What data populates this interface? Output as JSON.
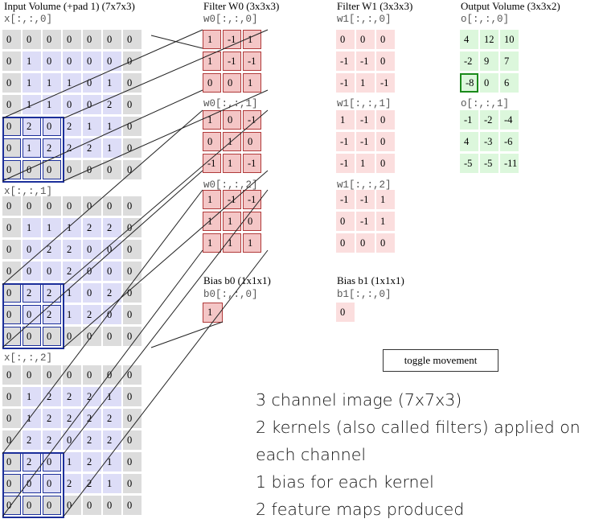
{
  "headers": {
    "input": "Input Volume (+pad 1) (7x7x3)",
    "w0": "Filter W0 (3x3x3)",
    "w1": "Filter W1 (3x3x3)",
    "out": "Output Volume (3x3x2)",
    "b0": "Bias b0 (1x1x1)",
    "b1": "Bias b1 (1x1x1)"
  },
  "input": {
    "labels": [
      "x[:,:,0]",
      "x[:,:,1]",
      "x[:,:,2]"
    ],
    "channels": [
      [
        [
          0,
          0,
          0,
          0,
          0,
          0,
          0
        ],
        [
          0,
          1,
          0,
          0,
          0,
          0,
          0
        ],
        [
          0,
          1,
          1,
          1,
          0,
          1,
          0
        ],
        [
          0,
          1,
          1,
          0,
          0,
          2,
          0
        ],
        [
          0,
          2,
          0,
          2,
          1,
          1,
          0
        ],
        [
          0,
          1,
          2,
          2,
          2,
          1,
          0
        ],
        [
          0,
          0,
          0,
          0,
          0,
          0,
          0
        ]
      ],
      [
        [
          0,
          0,
          0,
          0,
          0,
          0,
          0
        ],
        [
          0,
          1,
          1,
          1,
          2,
          2,
          0
        ],
        [
          0,
          0,
          2,
          2,
          0,
          0,
          0
        ],
        [
          0,
          0,
          0,
          2,
          0,
          0,
          0
        ],
        [
          0,
          2,
          2,
          1,
          0,
          2,
          0
        ],
        [
          0,
          0,
          2,
          1,
          2,
          0,
          0
        ],
        [
          0,
          0,
          0,
          0,
          0,
          0,
          0
        ]
      ],
      [
        [
          0,
          0,
          0,
          0,
          0,
          0,
          0
        ],
        [
          0,
          1,
          2,
          2,
          2,
          1,
          0
        ],
        [
          0,
          1,
          2,
          2,
          2,
          2,
          0
        ],
        [
          0,
          2,
          2,
          0,
          2,
          2,
          0
        ],
        [
          0,
          2,
          0,
          1,
          2,
          1,
          0
        ],
        [
          0,
          0,
          0,
          2,
          2,
          1,
          0
        ],
        [
          0,
          0,
          0,
          0,
          0,
          0,
          0
        ]
      ]
    ]
  },
  "w0": {
    "labels": [
      "w0[:,:,0]",
      "w0[:,:,1]",
      "w0[:,:,2]"
    ],
    "channels": [
      [
        [
          1,
          -1,
          1
        ],
        [
          1,
          -1,
          -1
        ],
        [
          0,
          0,
          1
        ]
      ],
      [
        [
          1,
          0,
          -1
        ],
        [
          0,
          1,
          0
        ],
        [
          -1,
          1,
          -1
        ]
      ],
      [
        [
          1,
          -1,
          -1
        ],
        [
          1,
          1,
          0
        ],
        [
          1,
          1,
          1
        ]
      ]
    ]
  },
  "w1": {
    "labels": [
      "w1[:,:,0]",
      "w1[:,:,1]",
      "w1[:,:,2]"
    ],
    "channels": [
      [
        [
          0,
          0,
          0
        ],
        [
          -1,
          -1,
          0
        ],
        [
          -1,
          1,
          -1
        ]
      ],
      [
        [
          1,
          -1,
          0
        ],
        [
          -1,
          -1,
          0
        ],
        [
          -1,
          1,
          0
        ]
      ],
      [
        [
          -1,
          -1,
          1
        ],
        [
          0,
          -1,
          1
        ],
        [
          0,
          0,
          0
        ]
      ]
    ]
  },
  "b0": {
    "label": "b0[:,:,0]",
    "value": 1
  },
  "b1": {
    "label": "b1[:,:,0]",
    "value": 0
  },
  "output": {
    "labels": [
      "o[:,:,0]",
      "o[:,:,1]"
    ],
    "channels": [
      [
        [
          4,
          12,
          10
        ],
        [
          -2,
          9,
          7
        ],
        [
          -8,
          0,
          6
        ]
      ],
      [
        [
          -1,
          -2,
          -4
        ],
        [
          4,
          -3,
          -6
        ],
        [
          -5,
          -5,
          -11
        ]
      ]
    ],
    "highlight": {
      "channel": 0,
      "row": 2,
      "col": 0
    }
  },
  "toggle_label": "toggle movement",
  "caption": [
    "3 channel image (7x7x3)",
    "2 kernels (also called filters) applied on",
    "each channel",
    "1 bias for each kernel",
    "2 feature maps produced"
  ],
  "colors": {
    "input_cell": "#ddddf7",
    "pad_cell": "#dcdcdc",
    "w0_cell": "#f4c6c6",
    "w1_cell": "#fbdede",
    "out_cell": "#dcf7dc",
    "highlight_border": "#1a8a1a",
    "receptive_field": "#1c2f9a"
  }
}
